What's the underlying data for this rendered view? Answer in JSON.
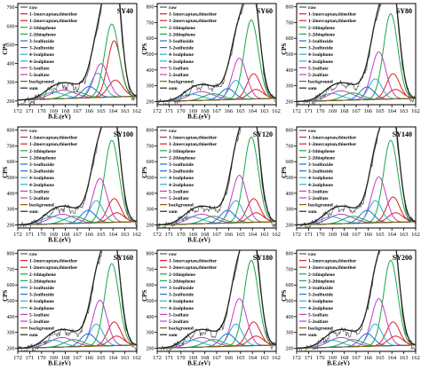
{
  "figure": {
    "legend_labels": [
      "raw",
      "1-1mercaptan,thioether",
      "1-2mercaptan,thioether",
      "2-1thiophene",
      "2-2thiophene",
      "3-1sulfoxide",
      "3-2sulfoxide",
      "4-1sulphone",
      "4-2sulphone",
      "5-1sulfate",
      "5-2sulfate",
      "background",
      "sum"
    ],
    "colors": {
      "raw": "#555555",
      "sum": "#222222",
      "background": "#8a5a00",
      "thioether1": "#e02020",
      "thioether2": "#e02020",
      "thiophene1": "#1aa84a",
      "thiophene2": "#1aa84a",
      "sulfoxide1": "#1f6fd6",
      "sulfoxide2": "#1f6fd6",
      "sulphone1": "#2ab0c8",
      "sulphone2": "#2ab0c8",
      "sulfate1": "#c040c0",
      "sulfate2": "#c040c0"
    }
  },
  "chart_data": [
    {
      "type": "line",
      "title": "SY40",
      "xlabel": "B.E.(eV)",
      "ylabel": "CPS",
      "x_ticks": [
        "172",
        "171",
        "170",
        "169",
        "168",
        "167",
        "166",
        "165",
        "164",
        "163",
        "162"
      ],
      "y_ticks": [
        "200",
        "300",
        "400",
        "500",
        "600",
        "700"
      ],
      "xlim": [
        172,
        162
      ],
      "ylim": [
        180,
        720
      ],
      "background": [
        205,
        225
      ],
      "peaks": [
        {
          "component": "thioether1",
          "center": 163.9,
          "height": 300,
          "width": 0.55
        },
        {
          "component": "thioether2",
          "center": 163.8,
          "height": 90,
          "width": 0.6
        },
        {
          "component": "thiophene1",
          "center": 164.1,
          "height": 390,
          "width": 0.6
        },
        {
          "component": "sulphone1",
          "center": 165.3,
          "height": 130,
          "width": 0.55
        },
        {
          "component": "sulfate1",
          "center": 165.0,
          "height": 180,
          "width": 0.6
        },
        {
          "component": "sulfoxide1",
          "center": 166.0,
          "height": 60,
          "width": 0.6
        },
        {
          "component": "sulfate2",
          "center": 168.2,
          "height": 45,
          "width": 1.0
        },
        {
          "component": "sulphone2",
          "center": 169.0,
          "height": 35,
          "width": 0.9
        },
        {
          "component": "thiophene2",
          "center": 167.2,
          "height": 35,
          "width": 0.8
        }
      ]
    },
    {
      "type": "line",
      "title": "SY60",
      "xlabel": "B.E.(eV)",
      "ylabel": "CPS",
      "x_ticks": [
        "172",
        "171",
        "170",
        "169",
        "168",
        "167",
        "166",
        "165",
        "164",
        "163",
        "162"
      ],
      "y_ticks": [
        "200",
        "300",
        "400",
        "500",
        "600",
        "700",
        "800"
      ],
      "xlim": [
        172,
        162
      ],
      "ylim": [
        180,
        820
      ],
      "background": [
        200,
        220
      ],
      "peaks": [
        {
          "component": "thioether1",
          "center": 163.9,
          "height": 160,
          "width": 0.55
        },
        {
          "component": "thioether2",
          "center": 163.7,
          "height": 60,
          "width": 0.6
        },
        {
          "component": "thiophene1",
          "center": 164.1,
          "height": 500,
          "width": 0.6
        },
        {
          "component": "sulfate1",
          "center": 165.1,
          "height": 260,
          "width": 0.6
        },
        {
          "component": "sulphone1",
          "center": 165.4,
          "height": 120,
          "width": 0.55
        },
        {
          "component": "sulfoxide1",
          "center": 166.1,
          "height": 70,
          "width": 0.6
        },
        {
          "component": "sulfate2",
          "center": 168.3,
          "height": 55,
          "width": 1.0
        },
        {
          "component": "sulphone2",
          "center": 169.1,
          "height": 40,
          "width": 0.9
        },
        {
          "component": "thiophene2",
          "center": 167.3,
          "height": 40,
          "width": 0.8
        }
      ]
    },
    {
      "type": "line",
      "title": "SY80",
      "xlabel": "",
      "ylabel": "CPS",
      "x_ticks": [
        "172",
        "171",
        "170",
        "169",
        "168",
        "167",
        "166",
        "165",
        "164",
        "163",
        "162"
      ],
      "y_ticks": [
        "200",
        "300",
        "400",
        "500",
        "600",
        "700",
        "800"
      ],
      "xlim": [
        172,
        162
      ],
      "ylim": [
        180,
        820
      ],
      "background": [
        200,
        220
      ],
      "peaks": [
        {
          "component": "thioether1",
          "center": 163.9,
          "height": 160,
          "width": 0.55
        },
        {
          "component": "thioether2",
          "center": 163.7,
          "height": 60,
          "width": 0.6
        },
        {
          "component": "thiophene1",
          "center": 164.1,
          "height": 540,
          "width": 0.6
        },
        {
          "component": "sulfate1",
          "center": 165.1,
          "height": 300,
          "width": 0.6
        },
        {
          "component": "sulphone1",
          "center": 165.4,
          "height": 130,
          "width": 0.55
        },
        {
          "component": "sulfoxide1",
          "center": 166.1,
          "height": 80,
          "width": 0.6
        },
        {
          "component": "sulfate2",
          "center": 168.3,
          "height": 60,
          "width": 1.0
        },
        {
          "component": "sulphone2",
          "center": 169.1,
          "height": 45,
          "width": 0.9
        },
        {
          "component": "thiophene2",
          "center": 167.3,
          "height": 45,
          "width": 0.8
        }
      ]
    },
    {
      "type": "line",
      "title": "SY100",
      "xlabel": "B.E.(eV)",
      "ylabel": "CPS",
      "x_ticks": [
        "172",
        "171",
        "170",
        "169",
        "168",
        "167",
        "166",
        "165",
        "164",
        "163",
        "162"
      ],
      "y_ticks": [
        "200",
        "300",
        "400",
        "500",
        "600",
        "700",
        "800"
      ],
      "xlim": [
        172,
        162
      ],
      "ylim": [
        180,
        820
      ],
      "background": [
        200,
        220
      ],
      "peaks": [
        {
          "component": "thioether1",
          "center": 163.9,
          "height": 150,
          "width": 0.55
        },
        {
          "component": "thioether2",
          "center": 163.7,
          "height": 60,
          "width": 0.6
        },
        {
          "component": "thiophene1",
          "center": 164.1,
          "height": 520,
          "width": 0.6
        },
        {
          "component": "sulfate1",
          "center": 165.1,
          "height": 280,
          "width": 0.6
        },
        {
          "component": "sulphone1",
          "center": 165.4,
          "height": 140,
          "width": 0.55
        },
        {
          "component": "sulfoxide1",
          "center": 166.1,
          "height": 80,
          "width": 0.6
        },
        {
          "component": "sulfate2",
          "center": 168.3,
          "height": 60,
          "width": 1.0
        },
        {
          "component": "sulphone2",
          "center": 169.1,
          "height": 45,
          "width": 0.9
        },
        {
          "component": "thiophene2",
          "center": 167.3,
          "height": 45,
          "width": 0.8
        }
      ]
    },
    {
      "type": "line",
      "title": "SY120",
      "xlabel": "B.E.(eV)",
      "ylabel": "CPS",
      "x_ticks": [
        "172",
        "171",
        "170",
        "169",
        "168",
        "167",
        "166",
        "165",
        "164",
        "163",
        "162"
      ],
      "y_ticks": [
        "200",
        "300",
        "400",
        "500",
        "600",
        "700",
        "800"
      ],
      "xlim": [
        172,
        162
      ],
      "ylim": [
        180,
        820
      ],
      "background": [
        200,
        220
      ],
      "peaks": [
        {
          "component": "thioether1",
          "center": 163.9,
          "height": 150,
          "width": 0.55
        },
        {
          "component": "thioether2",
          "center": 163.7,
          "height": 60,
          "width": 0.6
        },
        {
          "component": "thiophene1",
          "center": 164.1,
          "height": 540,
          "width": 0.6
        },
        {
          "component": "sulfate1",
          "center": 165.1,
          "height": 300,
          "width": 0.6
        },
        {
          "component": "sulphone1",
          "center": 165.4,
          "height": 140,
          "width": 0.55
        },
        {
          "component": "sulfoxide1",
          "center": 166.1,
          "height": 80,
          "width": 0.6
        },
        {
          "component": "sulfate2",
          "center": 168.3,
          "height": 60,
          "width": 1.0
        },
        {
          "component": "sulphone2",
          "center": 169.1,
          "height": 45,
          "width": 0.9
        },
        {
          "component": "thiophene2",
          "center": 167.3,
          "height": 45,
          "width": 0.8
        }
      ]
    },
    {
      "type": "line",
      "title": "SY140",
      "xlabel": "",
      "ylabel": "CPS",
      "x_ticks": [
        "172",
        "171",
        "170",
        "169",
        "168",
        "167",
        "166",
        "165",
        "164",
        "163",
        "162"
      ],
      "y_ticks": [
        "200",
        "300",
        "400",
        "500",
        "600",
        "700",
        "800"
      ],
      "xlim": [
        172,
        162
      ],
      "ylim": [
        180,
        820
      ],
      "background": [
        200,
        220
      ],
      "peaks": [
        {
          "component": "thioether1",
          "center": 163.9,
          "height": 160,
          "width": 0.55
        },
        {
          "component": "thioether2",
          "center": 163.7,
          "height": 60,
          "width": 0.6
        },
        {
          "component": "thiophene1",
          "center": 164.1,
          "height": 520,
          "width": 0.6
        },
        {
          "component": "sulfate1",
          "center": 165.1,
          "height": 290,
          "width": 0.6
        },
        {
          "component": "sulphone1",
          "center": 165.4,
          "height": 140,
          "width": 0.55
        },
        {
          "component": "sulfoxide1",
          "center": 166.1,
          "height": 80,
          "width": 0.6
        },
        {
          "component": "sulfate2",
          "center": 168.3,
          "height": 60,
          "width": 1.0
        },
        {
          "component": "sulphone2",
          "center": 169.1,
          "height": 45,
          "width": 0.9
        },
        {
          "component": "thiophene2",
          "center": 167.3,
          "height": 45,
          "width": 0.8
        }
      ]
    },
    {
      "type": "line",
      "title": "SY160",
      "xlabel": "B.E.(eV)",
      "ylabel": "CPS",
      "x_ticks": [
        "172",
        "171",
        "170",
        "169",
        "168",
        "167",
        "166",
        "165",
        "164",
        "163",
        "162"
      ],
      "y_ticks": [
        "200",
        "300",
        "400",
        "500",
        "600",
        "700",
        "800"
      ],
      "xlim": [
        172,
        162
      ],
      "ylim": [
        180,
        820
      ],
      "background": [
        200,
        220
      ],
      "peaks": [
        {
          "component": "thioether1",
          "center": 163.9,
          "height": 150,
          "width": 0.55
        },
        {
          "component": "thioether2",
          "center": 163.7,
          "height": 60,
          "width": 0.6
        },
        {
          "component": "thiophene1",
          "center": 164.1,
          "height": 520,
          "width": 0.6
        },
        {
          "component": "sulfate1",
          "center": 165.1,
          "height": 290,
          "width": 0.6
        },
        {
          "component": "sulphone1",
          "center": 165.4,
          "height": 140,
          "width": 0.55
        },
        {
          "component": "sulfoxide1",
          "center": 166.1,
          "height": 80,
          "width": 0.6
        },
        {
          "component": "sulfate2",
          "center": 168.3,
          "height": 60,
          "width": 1.0
        },
        {
          "component": "sulphone2",
          "center": 169.1,
          "height": 45,
          "width": 0.9
        },
        {
          "component": "thiophene2",
          "center": 167.3,
          "height": 45,
          "width": 0.8
        }
      ]
    },
    {
      "type": "line",
      "title": "SY180",
      "xlabel": "B.E.(eV)",
      "ylabel": "CPS",
      "x_ticks": [
        "172",
        "171",
        "170",
        "169",
        "168",
        "167",
        "166",
        "165",
        "164",
        "163",
        "162"
      ],
      "y_ticks": [
        "200",
        "300",
        "400",
        "500",
        "600",
        "700",
        "800"
      ],
      "xlim": [
        172,
        162
      ],
      "ylim": [
        180,
        820
      ],
      "background": [
        200,
        220
      ],
      "peaks": [
        {
          "component": "thioether1",
          "center": 163.9,
          "height": 150,
          "width": 0.55
        },
        {
          "component": "thioether2",
          "center": 163.7,
          "height": 60,
          "width": 0.6
        },
        {
          "component": "thiophene1",
          "center": 164.1,
          "height": 540,
          "width": 0.6
        },
        {
          "component": "sulfate1",
          "center": 165.1,
          "height": 300,
          "width": 0.6
        },
        {
          "component": "sulphone1",
          "center": 165.4,
          "height": 140,
          "width": 0.55
        },
        {
          "component": "sulfoxide1",
          "center": 166.1,
          "height": 80,
          "width": 0.6
        },
        {
          "component": "sulfate2",
          "center": 168.3,
          "height": 60,
          "width": 1.0
        },
        {
          "component": "sulphone2",
          "center": 169.1,
          "height": 45,
          "width": 0.9
        },
        {
          "component": "thiophene2",
          "center": 167.3,
          "height": 45,
          "width": 0.8
        }
      ]
    },
    {
      "type": "line",
      "title": "SY200",
      "xlabel": "B.E.(eV)",
      "ylabel": "CPS",
      "x_ticks": [
        "172",
        "171",
        "170",
        "169",
        "168",
        "167",
        "166",
        "165",
        "164",
        "163",
        "162"
      ],
      "y_ticks": [
        "200",
        "300",
        "400",
        "500",
        "600",
        "700",
        "800"
      ],
      "xlim": [
        172,
        162
      ],
      "ylim": [
        180,
        820
      ],
      "background": [
        200,
        220
      ],
      "peaks": [
        {
          "component": "thioether1",
          "center": 163.9,
          "height": 150,
          "width": 0.55
        },
        {
          "component": "thioether2",
          "center": 163.7,
          "height": 60,
          "width": 0.6
        },
        {
          "component": "thiophene1",
          "center": 164.1,
          "height": 540,
          "width": 0.6
        },
        {
          "component": "sulfate1",
          "center": 165.1,
          "height": 300,
          "width": 0.6
        },
        {
          "component": "sulphone1",
          "center": 165.4,
          "height": 140,
          "width": 0.55
        },
        {
          "component": "sulfoxide1",
          "center": 166.1,
          "height": 80,
          "width": 0.6
        },
        {
          "component": "sulfate2",
          "center": 168.3,
          "height": 60,
          "width": 1.0
        },
        {
          "component": "sulphone2",
          "center": 169.1,
          "height": 45,
          "width": 0.9
        },
        {
          "component": "thiophene2",
          "center": 167.3,
          "height": 45,
          "width": 0.8
        }
      ]
    }
  ]
}
